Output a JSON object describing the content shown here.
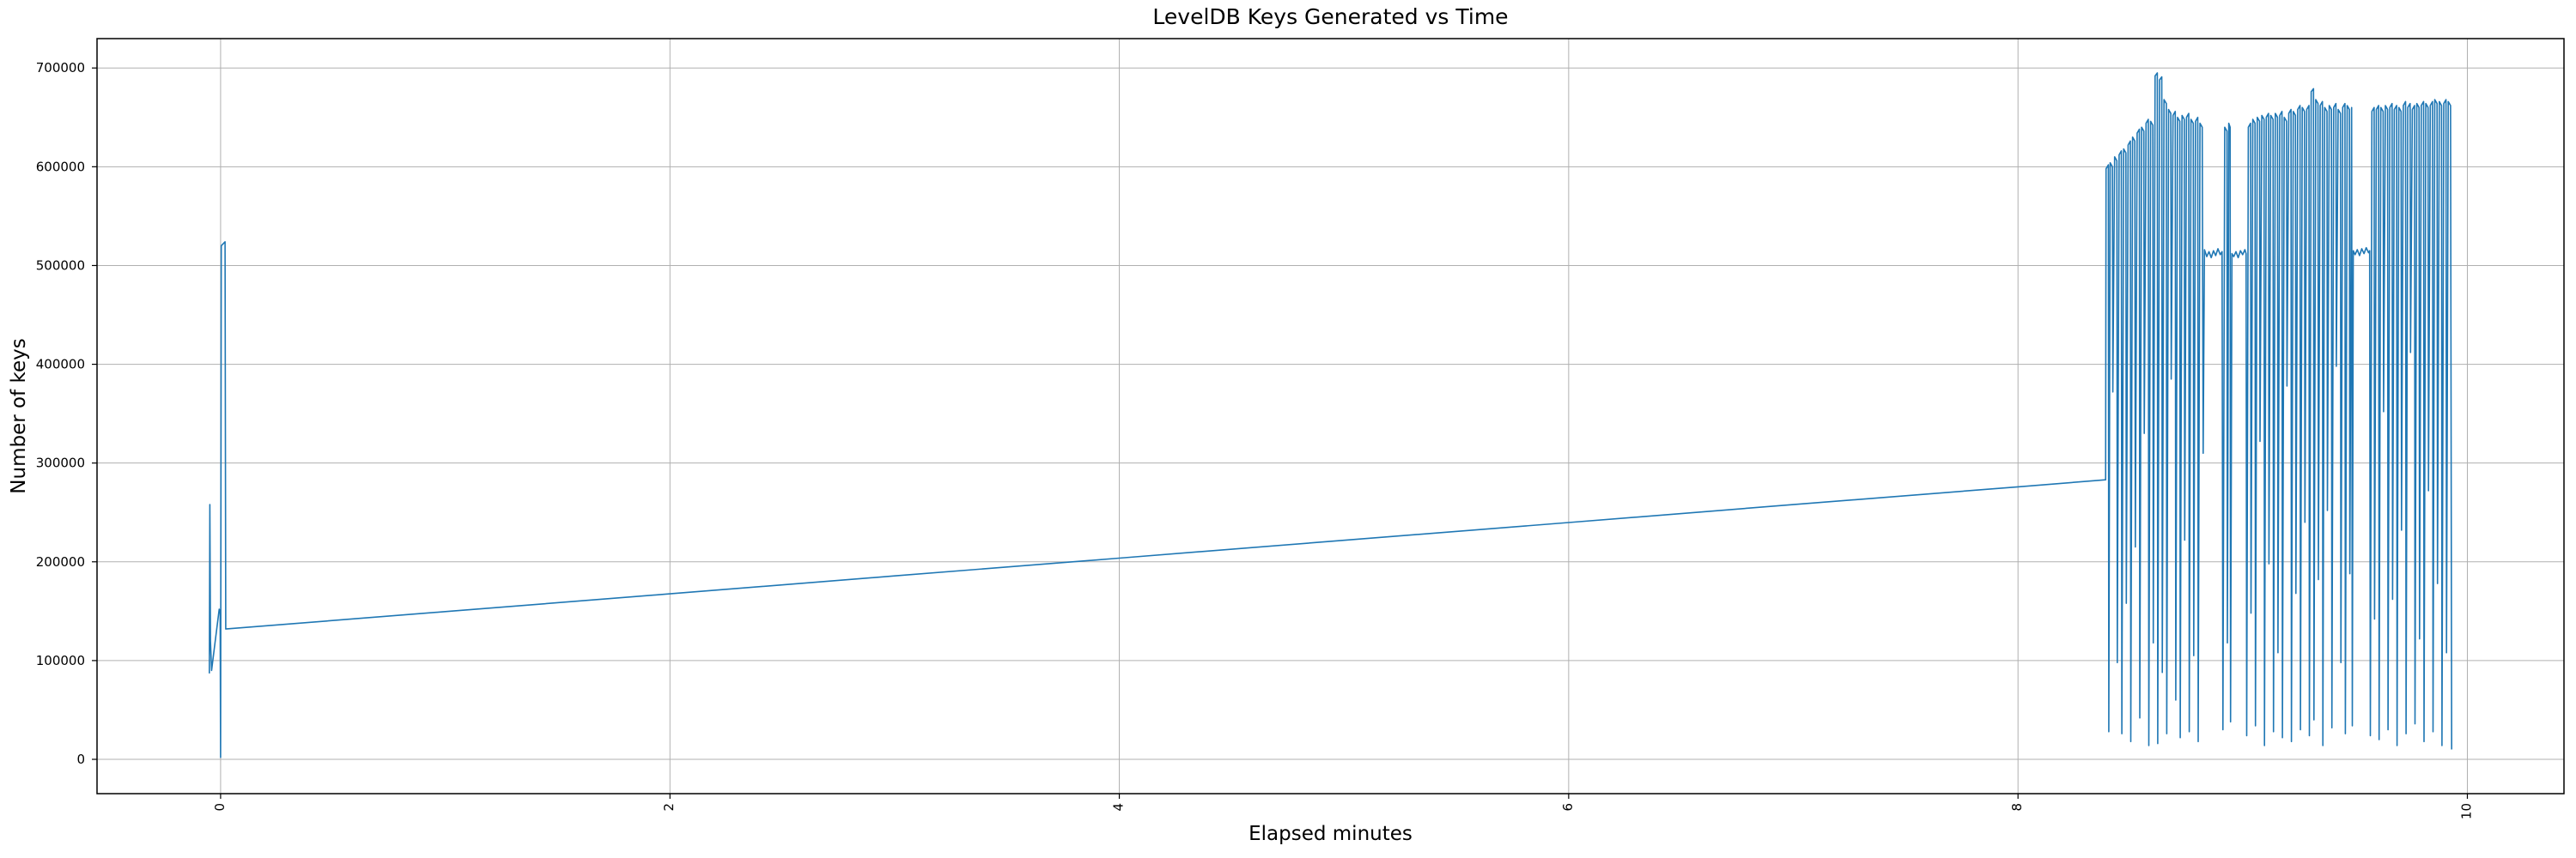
{
  "chart_data": {
    "type": "line",
    "title": "LevelDB Keys Generated vs Time",
    "xlabel": "Elapsed minutes",
    "ylabel": "Number of keys",
    "xlim": [
      -0.55,
      10.43
    ],
    "ylim": [
      -34750,
      729750
    ],
    "x_ticks": [
      0,
      2,
      4,
      6,
      8,
      10
    ],
    "x_tick_labels": [
      "0",
      "2",
      "4",
      "6",
      "8",
      "10"
    ],
    "x_tick_rotation": 90,
    "y_ticks": [
      0,
      100000,
      200000,
      300000,
      400000,
      500000,
      600000,
      700000
    ],
    "y_tick_labels": [
      "0",
      "100000",
      "200000",
      "300000",
      "400000",
      "500000",
      "600000",
      "700000"
    ],
    "grid": true,
    "legend": "none",
    "line_color": "#1f77b4",
    "grid_color": "#b0b0b0",
    "spine_color": "#000000",
    "text_color": "#000000",
    "series": [
      {
        "name": "keys",
        "points": [
          [
            -0.05,
            87000
          ],
          [
            -0.048,
            258000
          ],
          [
            -0.045,
            120000
          ],
          [
            -0.04,
            90000
          ],
          [
            -0.025,
            118000
          ],
          [
            -0.006,
            152000
          ],
          [
            -0.002,
            150000
          ],
          [
            0.0,
            2000
          ],
          [
            0.003,
            520000
          ],
          [
            0.02,
            524000
          ],
          [
            0.023,
            132000
          ],
          [
            1.0,
            149600
          ],
          [
            2.0,
            167600
          ],
          [
            3.0,
            185700
          ],
          [
            4.0,
            203700
          ],
          [
            5.0,
            221800
          ],
          [
            6.0,
            239800
          ],
          [
            7.0,
            257900
          ],
          [
            8.0,
            275900
          ],
          [
            8.39,
            283000
          ],
          [
            8.392,
            598000
          ],
          [
            8.402,
            602000
          ],
          [
            8.404,
            28000
          ],
          [
            8.41,
            604000
          ],
          [
            8.42,
            600000
          ],
          [
            8.422,
            372000
          ],
          [
            8.43,
            610000
          ],
          [
            8.44,
            606000
          ],
          [
            8.442,
            98000
          ],
          [
            8.45,
            612000
          ],
          [
            8.46,
            616000
          ],
          [
            8.462,
            26000
          ],
          [
            8.47,
            618000
          ],
          [
            8.48,
            614000
          ],
          [
            8.482,
            158000
          ],
          [
            8.49,
            622000
          ],
          [
            8.5,
            626000
          ],
          [
            8.502,
            18000
          ],
          [
            8.51,
            630000
          ],
          [
            8.52,
            626000
          ],
          [
            8.522,
            215000
          ],
          [
            8.53,
            634000
          ],
          [
            8.54,
            638000
          ],
          [
            8.542,
            42000
          ],
          [
            8.55,
            640000
          ],
          [
            8.56,
            636000
          ],
          [
            8.562,
            330000
          ],
          [
            8.57,
            644000
          ],
          [
            8.58,
            648000
          ],
          [
            8.582,
            14000
          ],
          [
            8.59,
            646000
          ],
          [
            8.6,
            642000
          ],
          [
            8.602,
            118000
          ],
          [
            8.61,
            692000
          ],
          [
            8.62,
            695000
          ],
          [
            8.622,
            16000
          ],
          [
            8.63,
            688000
          ],
          [
            8.64,
            691000
          ],
          [
            8.642,
            88000
          ],
          [
            8.65,
            668000
          ],
          [
            8.66,
            664000
          ],
          [
            8.662,
            26000
          ],
          [
            8.67,
            658000
          ],
          [
            8.68,
            654000
          ],
          [
            8.682,
            385000
          ],
          [
            8.69,
            652000
          ],
          [
            8.7,
            656000
          ],
          [
            8.702,
            60000
          ],
          [
            8.71,
            650000
          ],
          [
            8.72,
            646000
          ],
          [
            8.722,
            22000
          ],
          [
            8.73,
            652000
          ],
          [
            8.74,
            648000
          ],
          [
            8.742,
            222000
          ],
          [
            8.75,
            650000
          ],
          [
            8.76,
            654000
          ],
          [
            8.762,
            28000
          ],
          [
            8.77,
            648000
          ],
          [
            8.78,
            644000
          ],
          [
            8.782,
            105000
          ],
          [
            8.79,
            646000
          ],
          [
            8.8,
            650000
          ],
          [
            8.802,
            18000
          ],
          [
            8.81,
            644000
          ],
          [
            8.82,
            640000
          ],
          [
            8.824,
            310000
          ],
          [
            8.83,
            516000
          ],
          [
            8.84,
            509000
          ],
          [
            8.85,
            514000
          ],
          [
            8.86,
            508000
          ],
          [
            8.87,
            515000
          ],
          [
            8.88,
            510000
          ],
          [
            8.89,
            517000
          ],
          [
            8.9,
            511000
          ],
          [
            8.908,
            514000
          ],
          [
            8.912,
            30000
          ],
          [
            8.92,
            640000
          ],
          [
            8.93,
            636000
          ],
          [
            8.932,
            118000
          ],
          [
            8.938,
            644000
          ],
          [
            8.944,
            640000
          ],
          [
            8.946,
            38000
          ],
          [
            8.952,
            512000
          ],
          [
            8.96,
            509000
          ],
          [
            8.97,
            514000
          ],
          [
            8.98,
            508000
          ],
          [
            8.99,
            515000
          ],
          [
            9.0,
            511000
          ],
          [
            9.01,
            516000
          ],
          [
            9.015,
            512000
          ],
          [
            9.018,
            24000
          ],
          [
            9.025,
            640000
          ],
          [
            9.035,
            644000
          ],
          [
            9.037,
            148000
          ],
          [
            9.045,
            648000
          ],
          [
            9.055,
            644000
          ],
          [
            9.057,
            34000
          ],
          [
            9.065,
            650000
          ],
          [
            9.075,
            646000
          ],
          [
            9.077,
            322000
          ],
          [
            9.085,
            652000
          ],
          [
            9.095,
            648000
          ],
          [
            9.097,
            14000
          ],
          [
            9.105,
            650000
          ],
          [
            9.115,
            654000
          ],
          [
            9.117,
            198000
          ],
          [
            9.125,
            652000
          ],
          [
            9.135,
            648000
          ],
          [
            9.137,
            28000
          ],
          [
            9.145,
            654000
          ],
          [
            9.155,
            650000
          ],
          [
            9.157,
            108000
          ],
          [
            9.165,
            652000
          ],
          [
            9.175,
            656000
          ],
          [
            9.177,
            22000
          ],
          [
            9.185,
            650000
          ],
          [
            9.195,
            646000
          ],
          [
            9.197,
            378000
          ],
          [
            9.205,
            654000
          ],
          [
            9.215,
            658000
          ],
          [
            9.217,
            18000
          ],
          [
            9.225,
            656000
          ],
          [
            9.235,
            652000
          ],
          [
            9.237,
            168000
          ],
          [
            9.245,
            658000
          ],
          [
            9.255,
            662000
          ],
          [
            9.257,
            30000
          ],
          [
            9.265,
            660000
          ],
          [
            9.275,
            656000
          ],
          [
            9.277,
            240000
          ],
          [
            9.285,
            658000
          ],
          [
            9.295,
            662000
          ],
          [
            9.297,
            24000
          ],
          [
            9.305,
            676000
          ],
          [
            9.315,
            679000
          ],
          [
            9.317,
            40000
          ],
          [
            9.325,
            668000
          ],
          [
            9.335,
            664000
          ],
          [
            9.337,
            182000
          ],
          [
            9.345,
            662000
          ],
          [
            9.355,
            666000
          ],
          [
            9.357,
            14000
          ],
          [
            9.365,
            660000
          ],
          [
            9.375,
            656000
          ],
          [
            9.377,
            252000
          ],
          [
            9.385,
            662000
          ],
          [
            9.395,
            658000
          ],
          [
            9.397,
            32000
          ],
          [
            9.405,
            660000
          ],
          [
            9.415,
            664000
          ],
          [
            9.417,
            398000
          ],
          [
            9.425,
            658000
          ],
          [
            9.435,
            654000
          ],
          [
            9.437,
            98000
          ],
          [
            9.445,
            660000
          ],
          [
            9.455,
            664000
          ],
          [
            9.457,
            26000
          ],
          [
            9.465,
            662000
          ],
          [
            9.475,
            658000
          ],
          [
            9.477,
            188000
          ],
          [
            9.485,
            660000
          ],
          [
            9.488,
            34000
          ],
          [
            9.492,
            515000
          ],
          [
            9.5,
            511000
          ],
          [
            9.51,
            516000
          ],
          [
            9.52,
            510000
          ],
          [
            9.53,
            517000
          ],
          [
            9.54,
            512000
          ],
          [
            9.55,
            518000
          ],
          [
            9.56,
            513000
          ],
          [
            9.565,
            515000
          ],
          [
            9.568,
            24000
          ],
          [
            9.575,
            656000
          ],
          [
            9.585,
            660000
          ],
          [
            9.587,
            142000
          ],
          [
            9.595,
            658000
          ],
          [
            9.605,
            662000
          ],
          [
            9.607,
            20000
          ],
          [
            9.615,
            660000
          ],
          [
            9.625,
            656000
          ],
          [
            9.627,
            352000
          ],
          [
            9.635,
            662000
          ],
          [
            9.645,
            658000
          ],
          [
            9.647,
            30000
          ],
          [
            9.655,
            660000
          ],
          [
            9.665,
            664000
          ],
          [
            9.667,
            162000
          ],
          [
            9.675,
            658000
          ],
          [
            9.685,
            662000
          ],
          [
            9.687,
            14000
          ],
          [
            9.695,
            660000
          ],
          [
            9.705,
            656000
          ],
          [
            9.707,
            232000
          ],
          [
            9.715,
            662000
          ],
          [
            9.725,
            666000
          ],
          [
            9.727,
            26000
          ],
          [
            9.735,
            660000
          ],
          [
            9.745,
            664000
          ],
          [
            9.747,
            412000
          ],
          [
            9.755,
            658000
          ],
          [
            9.765,
            662000
          ],
          [
            9.767,
            36000
          ],
          [
            9.775,
            664000
          ],
          [
            9.785,
            660000
          ],
          [
            9.787,
            122000
          ],
          [
            9.795,
            662000
          ],
          [
            9.805,
            666000
          ],
          [
            9.807,
            18000
          ],
          [
            9.815,
            664000
          ],
          [
            9.825,
            660000
          ],
          [
            9.827,
            272000
          ],
          [
            9.835,
            662000
          ],
          [
            9.845,
            666000
          ],
          [
            9.847,
            28000
          ],
          [
            9.855,
            668000
          ],
          [
            9.865,
            664000
          ],
          [
            9.867,
            178000
          ],
          [
            9.875,
            666000
          ],
          [
            9.885,
            662000
          ],
          [
            9.887,
            14000
          ],
          [
            9.895,
            664000
          ],
          [
            9.905,
            668000
          ],
          [
            9.907,
            108000
          ],
          [
            9.915,
            666000
          ],
          [
            9.925,
            662000
          ],
          [
            9.93,
            10000
          ]
        ]
      }
    ]
  }
}
